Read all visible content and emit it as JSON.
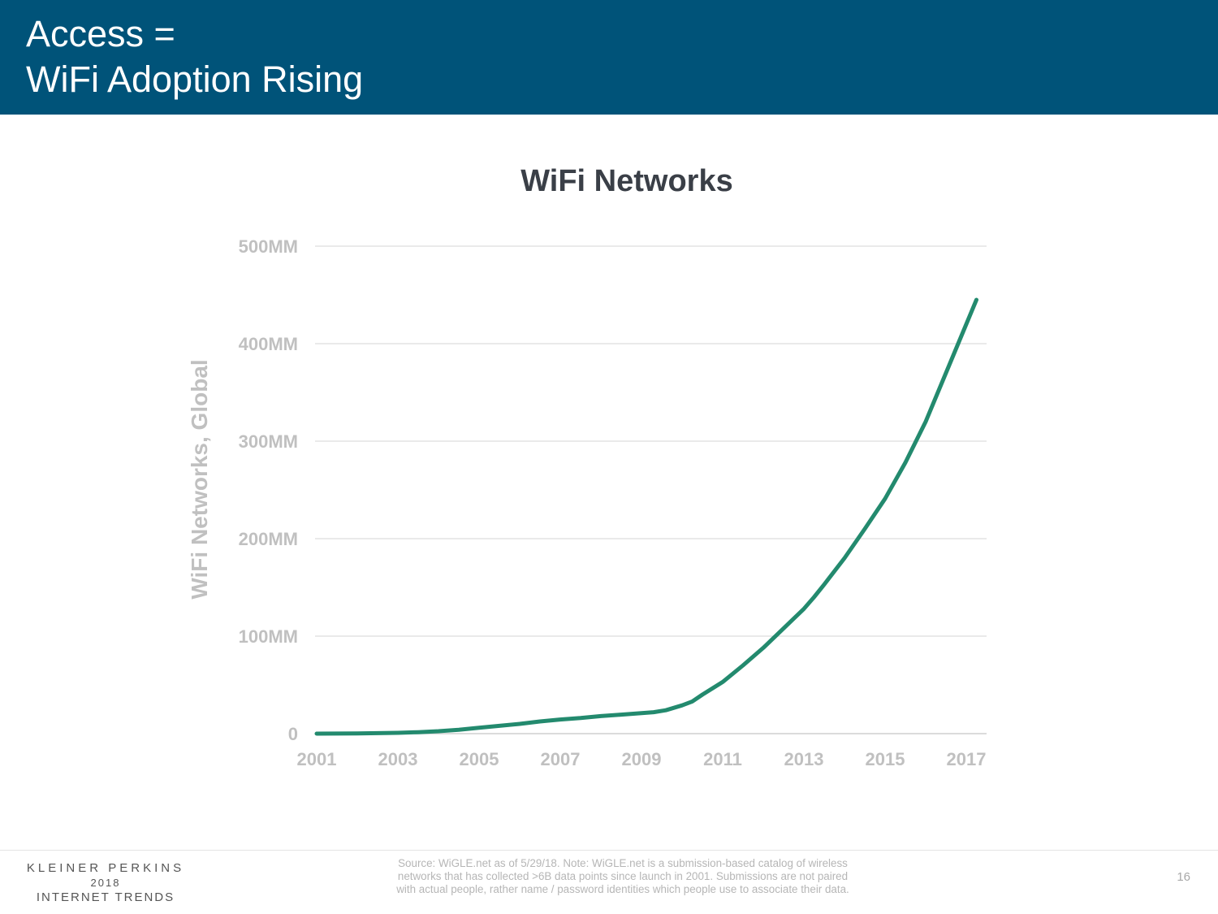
{
  "header": {
    "title_line1": "Access =",
    "title_line2": "WiFi Adoption Rising"
  },
  "colors": {
    "header_bg": "#005379",
    "line": "#238a6e",
    "axis_text": "#c0c0c0",
    "title_text": "#3a3f47"
  },
  "chart_data": {
    "type": "line",
    "title": "WiFi Networks",
    "xlabel": "",
    "ylabel": "WiFi Networks, Global",
    "ylim": [
      0,
      500
    ],
    "xlim": [
      2001,
      2017.5
    ],
    "y_ticks": [
      0,
      100,
      200,
      300,
      400,
      500
    ],
    "y_tick_labels": [
      "0",
      "100MM",
      "200MM",
      "300MM",
      "400MM",
      "500MM"
    ],
    "x_ticks": [
      2001,
      2003,
      2005,
      2007,
      2009,
      2011,
      2013,
      2015,
      2017
    ],
    "x_tick_labels": [
      "2001",
      "2003",
      "2005",
      "2007",
      "2009",
      "2011",
      "2013",
      "2015",
      "2017"
    ],
    "grid": true,
    "series": [
      {
        "name": "WiFi Networks",
        "unit": "MM",
        "x": [
          2001,
          2002,
          2003,
          2003.5,
          2004,
          2004.5,
          2005,
          2005.5,
          2006,
          2006.5,
          2007,
          2007.5,
          2008,
          2008.5,
          2009,
          2009.3,
          2009.6,
          2010,
          2010.25,
          2010.5,
          2011,
          2011.5,
          2012,
          2012.5,
          2013,
          2013.25,
          2013.5,
          2014,
          2014.5,
          2015,
          2015.5,
          2016,
          2016.5,
          2017,
          2017.25
        ],
        "y": [
          0,
          0.2,
          0.8,
          1.5,
          2.5,
          4,
          6,
          8,
          10,
          12.5,
          14.5,
          16,
          18,
          19.5,
          21,
          22,
          24,
          29,
          33,
          40,
          53,
          70,
          88,
          108,
          128,
          140,
          153,
          180,
          210,
          241,
          278,
          320,
          370,
          420,
          445
        ]
      }
    ]
  },
  "footer": {
    "logo_line1": "KLEINER PERKINS",
    "logo_line2": "2018",
    "logo_line3": "INTERNET TRENDS",
    "source_line1": "Source: WiGLE.net as of 5/29/18.  Note: WiGLE.net is a submission-based catalog of wireless",
    "source_line2": "networks that has collected >6B data points since launch in 2001. Submissions are not paired",
    "source_line3": "with actual people, rather name / password identities which people use to associate their data.",
    "page_number": "16"
  }
}
